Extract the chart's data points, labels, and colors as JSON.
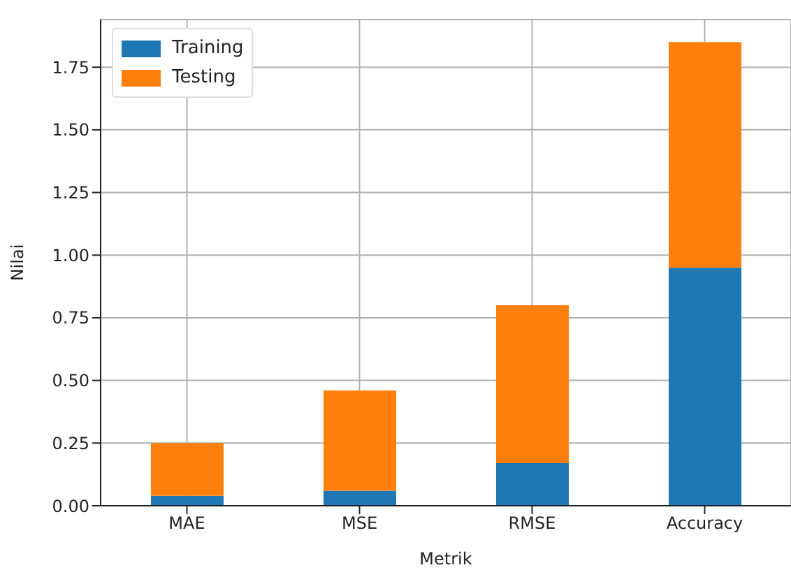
{
  "chart_data": {
    "type": "bar",
    "xlabel": "Metrik",
    "ylabel": "Nilai",
    "categories": [
      "MAE",
      "MSE",
      "RMSE",
      "Accuracy"
    ],
    "stacked": true,
    "series": [
      {
        "name": "Training",
        "color": "#1f77b4",
        "values": [
          0.04,
          0.06,
          0.17,
          0.95
        ]
      },
      {
        "name": "Testing",
        "color": "#ff7f0e",
        "values": [
          0.21,
          0.4,
          0.63,
          0.9
        ]
      }
    ],
    "ylim": [
      0,
      1.94
    ],
    "yticks": [
      {
        "value": 0,
        "label": "0.00"
      },
      {
        "value": 0.25,
        "label": "0.25"
      },
      {
        "value": 0.5,
        "label": "0.50"
      },
      {
        "value": 0.75,
        "label": "0.75"
      },
      {
        "value": 1,
        "label": "1.00"
      },
      {
        "value": 1.25,
        "label": "1.25"
      },
      {
        "value": 1.5,
        "label": "1.50"
      },
      {
        "value": 1.75,
        "label": "1.75"
      }
    ],
    "grid": true,
    "legend": "top left"
  }
}
